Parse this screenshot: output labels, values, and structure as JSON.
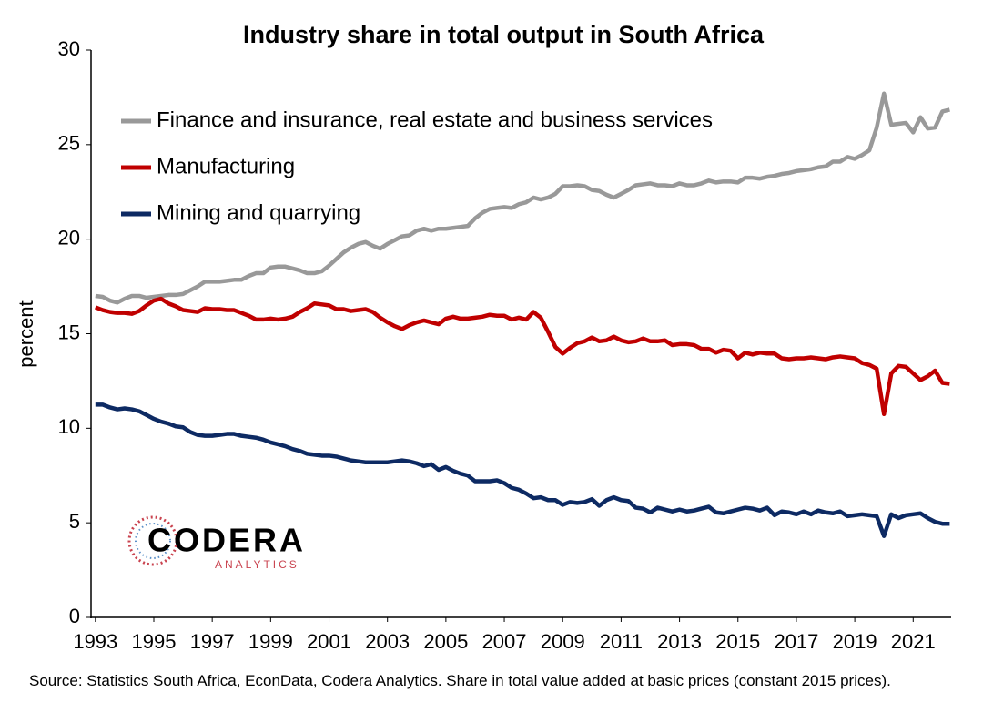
{
  "chart_data": {
    "type": "line",
    "title": "Industry share in total output in South Africa",
    "ylabel": "percent",
    "source": "Source: Statistics South Africa, EconData, Codera Analytics. Share in total value added at basic prices (constant 2015 prices).",
    "logo": {
      "name": "CODERA",
      "sub": "ANALYTICS"
    },
    "legend": "upper left",
    "grid": false,
    "xlim": [
      1992.85,
      2022.3
    ],
    "xticks": [
      1993,
      1995,
      1997,
      1999,
      2001,
      2003,
      2005,
      2007,
      2009,
      2011,
      2013,
      2015,
      2017,
      2019,
      2021
    ],
    "ylim": [
      0,
      30
    ],
    "yticks": [
      0,
      5,
      10,
      15,
      20,
      25,
      30
    ],
    "x": [
      1993,
      1993.25,
      1993.5,
      1993.75,
      1994,
      1994.25,
      1994.5,
      1994.75,
      1995,
      1995.25,
      1995.5,
      1995.75,
      1996,
      1996.25,
      1996.5,
      1996.75,
      1997,
      1997.25,
      1997.5,
      1997.75,
      1998,
      1998.25,
      1998.5,
      1998.75,
      1999,
      1999.25,
      1999.5,
      1999.75,
      2000,
      2000.25,
      2000.5,
      2000.75,
      2001,
      2001.25,
      2001.5,
      2001.75,
      2002,
      2002.25,
      2002.5,
      2002.75,
      2003,
      2003.25,
      2003.5,
      2003.75,
      2004,
      2004.25,
      2004.5,
      2004.75,
      2005,
      2005.25,
      2005.5,
      2005.75,
      2006,
      2006.25,
      2006.5,
      2006.75,
      2007,
      2007.25,
      2007.5,
      2007.75,
      2008,
      2008.25,
      2008.5,
      2008.75,
      2009,
      2009.25,
      2009.5,
      2009.75,
      2010,
      2010.25,
      2010.5,
      2010.75,
      2011,
      2011.25,
      2011.5,
      2011.75,
      2012,
      2012.25,
      2012.5,
      2012.75,
      2013,
      2013.25,
      2013.5,
      2013.75,
      2014,
      2014.25,
      2014.5,
      2014.75,
      2015,
      2015.25,
      2015.5,
      2015.75,
      2016,
      2016.25,
      2016.5,
      2016.75,
      2017,
      2017.25,
      2017.5,
      2017.75,
      2018,
      2018.25,
      2018.5,
      2018.75,
      2019,
      2019.25,
      2019.5,
      2019.75,
      2020,
      2020.25,
      2020.5,
      2020.75,
      2021,
      2021.25,
      2021.5,
      2021.75,
      2022,
      2022.25
    ],
    "series": [
      {
        "name": "Finance and insurance, real estate and business services",
        "color": "#999999",
        "values": [
          17.0,
          16.95,
          16.75,
          16.65,
          16.85,
          17.0,
          17.0,
          16.9,
          16.95,
          17.0,
          17.05,
          17.05,
          17.1,
          17.3,
          17.5,
          17.75,
          17.75,
          17.75,
          17.8,
          17.85,
          17.85,
          18.05,
          18.2,
          18.2,
          18.5,
          18.55,
          18.55,
          18.45,
          18.35,
          18.2,
          18.2,
          18.3,
          18.6,
          18.95,
          19.3,
          19.55,
          19.75,
          19.85,
          19.65,
          19.5,
          19.75,
          19.95,
          20.15,
          20.2,
          20.45,
          20.55,
          20.45,
          20.55,
          20.55,
          20.6,
          20.65,
          20.7,
          21.1,
          21.4,
          21.6,
          21.65,
          21.7,
          21.65,
          21.85,
          21.95,
          22.2,
          22.1,
          22.2,
          22.4,
          22.8,
          22.8,
          22.85,
          22.8,
          22.6,
          22.55,
          22.35,
          22.2,
          22.4,
          22.6,
          22.85,
          22.9,
          22.95,
          22.85,
          22.85,
          22.8,
          22.95,
          22.85,
          22.85,
          22.95,
          23.1,
          23.0,
          23.05,
          23.05,
          23.0,
          23.25,
          23.25,
          23.2,
          23.3,
          23.35,
          23.45,
          23.5,
          23.6,
          23.65,
          23.7,
          23.8,
          23.85,
          24.1,
          24.1,
          24.35,
          24.25,
          24.45,
          24.7,
          25.9,
          27.7,
          26.05,
          26.1,
          26.15,
          25.65,
          26.45,
          25.85,
          25.9,
          26.75,
          26.85
        ]
      },
      {
        "name": "Manufacturing",
        "color": "#c00000",
        "values": [
          16.4,
          16.25,
          16.15,
          16.1,
          16.1,
          16.05,
          16.2,
          16.5,
          16.75,
          16.85,
          16.6,
          16.45,
          16.25,
          16.2,
          16.15,
          16.35,
          16.3,
          16.3,
          16.25,
          16.25,
          16.1,
          15.95,
          15.75,
          15.75,
          15.8,
          15.75,
          15.8,
          15.9,
          16.15,
          16.35,
          16.6,
          16.55,
          16.5,
          16.3,
          16.3,
          16.2,
          16.25,
          16.3,
          16.15,
          15.85,
          15.6,
          15.4,
          15.25,
          15.45,
          15.6,
          15.7,
          15.6,
          15.5,
          15.8,
          15.9,
          15.8,
          15.8,
          15.85,
          15.9,
          16.0,
          15.95,
          15.95,
          15.75,
          15.85,
          15.75,
          16.15,
          15.85,
          15.1,
          14.3,
          13.95,
          14.25,
          14.5,
          14.6,
          14.8,
          14.6,
          14.65,
          14.85,
          14.65,
          14.55,
          14.6,
          14.75,
          14.6,
          14.6,
          14.65,
          14.4,
          14.45,
          14.45,
          14.4,
          14.2,
          14.2,
          14.0,
          14.15,
          14.1,
          13.7,
          14.0,
          13.9,
          14.0,
          13.95,
          13.95,
          13.7,
          13.65,
          13.7,
          13.7,
          13.75,
          13.7,
          13.65,
          13.75,
          13.8,
          13.75,
          13.7,
          13.45,
          13.35,
          13.15,
          10.75,
          12.9,
          13.3,
          13.25,
          12.9,
          12.55,
          12.75,
          13.05,
          12.4,
          12.35
        ]
      },
      {
        "name": "Mining and quarrying",
        "color": "#0d2a63",
        "values": [
          11.25,
          11.25,
          11.1,
          11.0,
          11.05,
          11.0,
          10.9,
          10.7,
          10.5,
          10.35,
          10.25,
          10.1,
          10.05,
          9.8,
          9.65,
          9.6,
          9.6,
          9.65,
          9.7,
          9.7,
          9.6,
          9.55,
          9.5,
          9.4,
          9.25,
          9.15,
          9.05,
          8.9,
          8.8,
          8.65,
          8.6,
          8.55,
          8.55,
          8.5,
          8.4,
          8.3,
          8.25,
          8.2,
          8.2,
          8.2,
          8.2,
          8.25,
          8.3,
          8.25,
          8.15,
          8.0,
          8.1,
          7.8,
          7.95,
          7.75,
          7.6,
          7.5,
          7.2,
          7.2,
          7.2,
          7.25,
          7.1,
          6.85,
          6.75,
          6.55,
          6.3,
          6.35,
          6.2,
          6.2,
          5.95,
          6.1,
          6.05,
          6.1,
          6.25,
          5.9,
          6.2,
          6.35,
          6.2,
          6.15,
          5.8,
          5.75,
          5.55,
          5.8,
          5.7,
          5.6,
          5.7,
          5.6,
          5.65,
          5.75,
          5.85,
          5.55,
          5.5,
          5.6,
          5.7,
          5.8,
          5.75,
          5.65,
          5.8,
          5.4,
          5.6,
          5.55,
          5.45,
          5.6,
          5.45,
          5.65,
          5.55,
          5.5,
          5.6,
          5.35,
          5.4,
          5.45,
          5.4,
          5.35,
          4.3,
          5.45,
          5.25,
          5.4,
          5.45,
          5.5,
          5.25,
          5.05,
          4.95,
          4.95
        ]
      }
    ]
  }
}
